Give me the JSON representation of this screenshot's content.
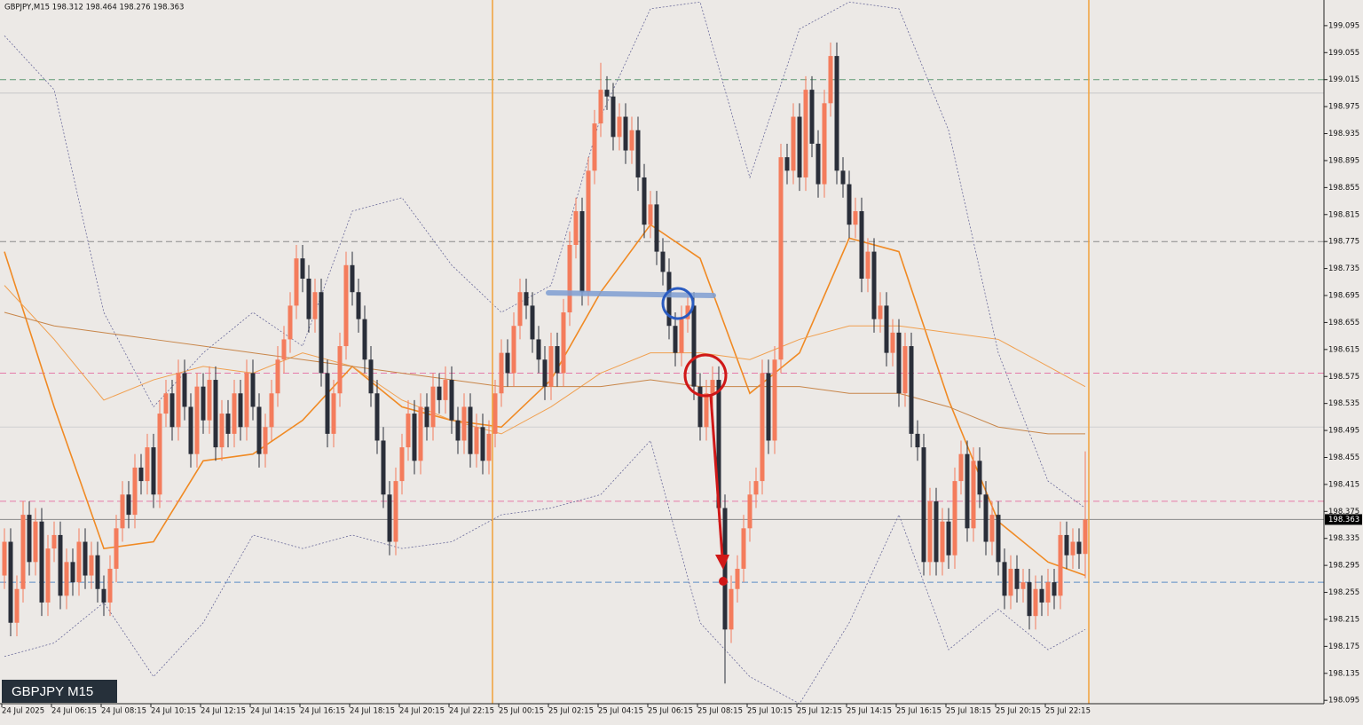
{
  "chart_data": {
    "type": "candlestick",
    "header": "GBPJPY,M15  198.312 198.464 198.276 198.363",
    "watermark": "GBPJPY M15",
    "up_color": "#f47c5c",
    "down_color": "#2a2e39",
    "ylim": [
      198.09,
      199.133
    ],
    "yticks": [
      199.095,
      199.055,
      199.015,
      198.975,
      198.935,
      198.895,
      198.855,
      198.815,
      198.775,
      198.735,
      198.695,
      198.655,
      198.615,
      198.575,
      198.535,
      198.495,
      198.455,
      198.415,
      198.375,
      198.335,
      198.295,
      198.255,
      198.215,
      198.175,
      198.135,
      198.095
    ],
    "categories": [
      "24 Jul 2025",
      null,
      null,
      null,
      null,
      null,
      null,
      null,
      "24 Jul 06:15",
      null,
      null,
      null,
      null,
      null,
      null,
      null,
      "24 Jul 08:15",
      null,
      null,
      null,
      null,
      null,
      null,
      null,
      "24 Jul 10:15",
      null,
      null,
      null,
      null,
      null,
      null,
      null,
      "24 Jul 12:15",
      null,
      null,
      null,
      null,
      null,
      null,
      null,
      "24 Jul 14:15",
      null,
      null,
      null,
      null,
      null,
      null,
      null,
      "24 Jul 16:15",
      null,
      null,
      null,
      null,
      null,
      null,
      null,
      "24 Jul 18:15",
      null,
      null,
      null,
      null,
      null,
      null,
      null,
      "24 Jul 20:15",
      null,
      null,
      null,
      null,
      null,
      null,
      null,
      "24 Jul 22:15",
      null,
      null,
      null,
      null,
      null,
      null,
      null,
      "25 Jul 00:15",
      null,
      null,
      null,
      null,
      null,
      null,
      null,
      "25 Jul 02:15",
      null,
      null,
      null,
      null,
      null,
      null,
      null,
      "25 Jul 04:15",
      null,
      null,
      null,
      null,
      null,
      null,
      null,
      "25 Jul 06:15",
      null,
      null,
      null,
      null,
      null,
      null,
      null,
      "25 Jul 08:15",
      null,
      null,
      null,
      null,
      null,
      null,
      null,
      "25 Jul 10:15",
      null,
      null,
      null,
      null,
      null,
      null,
      null,
      "25 Jul 12:15",
      null,
      null,
      null,
      null,
      null,
      null,
      null,
      "25 Jul 14:15",
      null,
      null,
      null,
      null,
      null,
      null,
      null,
      "25 Jul 16:15",
      null,
      null,
      null,
      null,
      null,
      null,
      null,
      "25 Jul 18:15",
      null,
      null,
      null,
      null,
      null,
      null,
      null,
      "25 Jul 20:15",
      null,
      null,
      null,
      null,
      null,
      null,
      null,
      "25 Jul 22:15",
      null,
      null,
      null,
      null,
      null,
      null
    ],
    "open": [
      198.28,
      198.33,
      198.21,
      198.26,
      198.37,
      198.3,
      198.36,
      198.24,
      198.32,
      198.34,
      198.25,
      198.3,
      198.27,
      198.33,
      198.28,
      198.31,
      198.26,
      198.24,
      198.29,
      198.35,
      198.4,
      198.37,
      198.44,
      198.42,
      198.47,
      198.4,
      198.52,
      198.55,
      198.5,
      198.58,
      198.53,
      198.46,
      198.56,
      198.51,
      198.57,
      198.47,
      198.52,
      198.49,
      198.55,
      198.5,
      198.58,
      198.53,
      198.46,
      198.5,
      198.55,
      198.6,
      198.63,
      198.68,
      198.75,
      198.72,
      198.66,
      198.7,
      198.58,
      198.49,
      198.55,
      198.62,
      198.74,
      198.7,
      198.66,
      198.6,
      198.55,
      198.48,
      198.4,
      198.33,
      198.42,
      198.47,
      198.52,
      198.45,
      198.53,
      198.5,
      198.56,
      198.54,
      198.57,
      198.51,
      198.48,
      198.53,
      198.46,
      198.5,
      198.45,
      198.49,
      198.55,
      198.61,
      198.58,
      198.65,
      198.7,
      198.68,
      198.63,
      198.6,
      198.56,
      198.62,
      198.58,
      198.67,
      198.77,
      198.82,
      198.7,
      198.88,
      198.95,
      199.0,
      198.99,
      198.93,
      198.96,
      198.91,
      198.94,
      198.87,
      198.8,
      198.83,
      198.76,
      198.73,
      198.65,
      198.61,
      198.66,
      198.68,
      198.56,
      198.5,
      198.55,
      198.57,
      198.38,
      198.2,
      198.26,
      198.29,
      198.35,
      198.4,
      198.42,
      198.58,
      198.48,
      198.6,
      198.9,
      198.88,
      198.96,
      198.87,
      199.0,
      198.92,
      198.86,
      198.98,
      199.05,
      198.88,
      198.86,
      198.8,
      198.82,
      198.72,
      198.76,
      198.66,
      198.68,
      198.61,
      198.64,
      198.55,
      198.62,
      198.49,
      198.47,
      198.3,
      198.39,
      198.3,
      198.36,
      198.31,
      198.42,
      198.46,
      198.35,
      198.45,
      198.4,
      198.33,
      198.37,
      198.3,
      198.25,
      198.29,
      198.26,
      198.27,
      198.22,
      198.26,
      198.24,
      198.27,
      198.25,
      198.34,
      198.31,
      198.33,
      198.312
    ],
    "high": [
      198.35,
      198.35,
      198.28,
      198.39,
      198.39,
      198.38,
      198.38,
      198.34,
      198.36,
      198.36,
      198.32,
      198.32,
      198.35,
      198.35,
      198.33,
      198.33,
      198.28,
      198.31,
      198.37,
      198.42,
      198.42,
      198.46,
      198.46,
      198.49,
      198.49,
      198.54,
      198.57,
      198.57,
      198.6,
      198.6,
      198.55,
      198.58,
      198.58,
      198.59,
      198.59,
      198.54,
      198.54,
      198.57,
      198.57,
      198.6,
      198.6,
      198.55,
      198.52,
      198.57,
      198.62,
      198.65,
      198.7,
      198.77,
      198.77,
      198.74,
      198.72,
      198.72,
      198.6,
      198.57,
      198.64,
      198.76,
      198.76,
      198.72,
      198.68,
      198.62,
      198.57,
      198.5,
      198.42,
      198.44,
      198.49,
      198.54,
      198.54,
      198.55,
      198.55,
      198.58,
      198.58,
      198.59,
      198.59,
      198.53,
      198.55,
      198.55,
      198.52,
      198.52,
      198.51,
      198.57,
      198.63,
      198.63,
      198.67,
      198.72,
      198.72,
      198.7,
      198.65,
      198.62,
      198.64,
      198.64,
      198.69,
      198.79,
      198.84,
      198.84,
      198.9,
      198.97,
      199.04,
      199.02,
      199.01,
      198.98,
      198.98,
      198.96,
      198.96,
      198.89,
      198.85,
      198.85,
      198.78,
      198.75,
      198.67,
      198.68,
      198.7,
      198.7,
      198.58,
      198.57,
      198.59,
      198.59,
      198.4,
      198.28,
      198.31,
      198.37,
      198.42,
      198.44,
      198.6,
      198.6,
      198.62,
      198.92,
      198.92,
      198.98,
      198.98,
      199.02,
      199.02,
      198.94,
      199.0,
      199.07,
      199.07,
      198.9,
      198.88,
      198.84,
      198.84,
      198.78,
      198.78,
      198.7,
      198.7,
      198.66,
      198.66,
      198.64,
      198.64,
      198.51,
      198.49,
      198.41,
      198.41,
      198.38,
      198.38,
      198.44,
      198.48,
      198.48,
      198.47,
      198.47,
      198.42,
      198.39,
      198.39,
      198.32,
      198.31,
      198.31,
      198.29,
      198.29,
      198.28,
      198.28,
      198.29,
      198.29,
      198.36,
      198.36,
      198.35,
      198.35,
      198.464
    ],
    "low": [
      198.26,
      198.19,
      198.19,
      198.24,
      198.28,
      198.28,
      198.22,
      198.22,
      198.3,
      198.23,
      198.23,
      198.25,
      198.25,
      198.26,
      198.26,
      198.24,
      198.22,
      198.22,
      198.27,
      198.33,
      198.35,
      198.35,
      198.4,
      198.4,
      198.38,
      198.38,
      198.5,
      198.48,
      198.48,
      198.51,
      198.44,
      198.44,
      198.49,
      198.49,
      198.45,
      198.45,
      198.47,
      198.47,
      198.48,
      198.48,
      198.51,
      198.44,
      198.44,
      198.48,
      198.53,
      198.58,
      198.61,
      198.66,
      198.7,
      198.64,
      198.64,
      198.56,
      198.47,
      198.47,
      198.53,
      198.6,
      198.68,
      198.64,
      198.58,
      198.53,
      198.46,
      198.38,
      198.31,
      198.31,
      198.4,
      198.45,
      198.43,
      198.43,
      198.48,
      198.48,
      198.52,
      198.52,
      198.49,
      198.46,
      198.46,
      198.44,
      198.44,
      198.43,
      198.43,
      198.47,
      198.53,
      198.56,
      198.56,
      198.63,
      198.66,
      198.61,
      198.58,
      198.54,
      198.54,
      198.56,
      198.56,
      198.65,
      198.75,
      198.68,
      198.68,
      198.86,
      198.93,
      198.97,
      198.91,
      198.91,
      198.89,
      198.89,
      198.85,
      198.78,
      198.78,
      198.74,
      198.71,
      198.63,
      198.59,
      198.59,
      198.64,
      198.54,
      198.48,
      198.48,
      198.53,
      198.36,
      198.12,
      198.18,
      198.24,
      198.27,
      198.33,
      198.38,
      198.4,
      198.46,
      198.46,
      198.58,
      198.86,
      198.86,
      198.85,
      198.85,
      198.9,
      198.84,
      198.84,
      198.96,
      198.86,
      198.84,
      198.78,
      198.78,
      198.7,
      198.7,
      198.64,
      198.64,
      198.59,
      198.59,
      198.53,
      198.53,
      198.47,
      198.45,
      198.28,
      198.28,
      198.28,
      198.28,
      198.29,
      198.29,
      198.4,
      198.33,
      198.33,
      198.38,
      198.31,
      198.31,
      198.28,
      198.23,
      198.23,
      198.24,
      198.24,
      198.2,
      198.2,
      198.22,
      198.22,
      198.23,
      198.23,
      198.29,
      198.29,
      198.29,
      198.276
    ],
    "close": [
      198.33,
      198.21,
      198.26,
      198.37,
      198.3,
      198.36,
      198.24,
      198.32,
      198.34,
      198.25,
      198.3,
      198.27,
      198.33,
      198.28,
      198.31,
      198.26,
      198.24,
      198.29,
      198.35,
      198.4,
      198.37,
      198.44,
      198.42,
      198.47,
      198.4,
      198.52,
      198.55,
      198.5,
      198.58,
      198.53,
      198.46,
      198.56,
      198.51,
      198.57,
      198.47,
      198.52,
      198.49,
      198.55,
      198.5,
      198.58,
      198.53,
      198.46,
      198.5,
      198.55,
      198.6,
      198.63,
      198.68,
      198.75,
      198.72,
      198.66,
      198.7,
      198.58,
      198.49,
      198.55,
      198.62,
      198.74,
      198.7,
      198.66,
      198.6,
      198.55,
      198.48,
      198.4,
      198.33,
      198.42,
      198.47,
      198.52,
      198.45,
      198.53,
      198.5,
      198.56,
      198.54,
      198.57,
      198.51,
      198.48,
      198.53,
      198.46,
      198.5,
      198.45,
      198.49,
      198.55,
      198.61,
      198.58,
      198.65,
      198.7,
      198.68,
      198.63,
      198.6,
      198.56,
      198.62,
      198.58,
      198.67,
      198.77,
      198.82,
      198.7,
      198.88,
      198.95,
      199.0,
      198.99,
      198.93,
      198.96,
      198.91,
      198.94,
      198.87,
      198.8,
      198.83,
      198.76,
      198.73,
      198.65,
      198.61,
      198.66,
      198.68,
      198.56,
      198.5,
      198.55,
      198.57,
      198.38,
      198.2,
      198.26,
      198.29,
      198.35,
      198.4,
      198.42,
      198.58,
      198.48,
      198.6,
      198.9,
      198.88,
      198.96,
      198.87,
      199.0,
      198.92,
      198.86,
      198.98,
      199.05,
      198.88,
      198.86,
      198.8,
      198.82,
      198.72,
      198.76,
      198.66,
      198.68,
      198.61,
      198.64,
      198.55,
      198.62,
      198.49,
      198.47,
      198.3,
      198.39,
      198.3,
      198.36,
      198.31,
      198.42,
      198.46,
      198.35,
      198.45,
      198.4,
      198.33,
      198.37,
      198.3,
      198.25,
      198.29,
      198.26,
      198.27,
      198.22,
      198.26,
      198.24,
      198.27,
      198.25,
      198.34,
      198.31,
      198.33,
      198.312,
      198.363
    ],
    "hlines": [
      {
        "value": 199.015,
        "color": "#5f9a74",
        "dashed": true
      },
      {
        "value": 198.995,
        "color": "#c8c8c8",
        "dashed": false
      },
      {
        "value": 198.775,
        "color": "#8a8a8a",
        "dashed": true
      },
      {
        "value": 198.58,
        "color": "#e57aa8",
        "dashed": true
      },
      {
        "value": 198.5,
        "color": "#d0d0d0",
        "dashed": false
      },
      {
        "value": 198.39,
        "color": "#e57aa8",
        "dashed": true
      },
      {
        "value": 198.363,
        "color": "#8a8a8a",
        "dashed": false
      },
      {
        "value": 198.27,
        "color": "#5b8fc7",
        "dashed": true
      }
    ],
    "indicator_x": [
      0,
      8,
      16,
      24,
      32,
      40,
      48,
      56,
      64,
      72,
      80,
      88,
      96,
      104,
      112,
      120,
      128,
      136,
      144,
      152,
      160,
      168,
      174
    ],
    "indicators": [
      {
        "color": "#f08a24",
        "width": 1.6,
        "dotted": false,
        "values": [
          198.76,
          198.53,
          198.32,
          198.33,
          198.45,
          198.46,
          198.51,
          198.59,
          198.53,
          198.51,
          198.5,
          198.57,
          198.7,
          198.8,
          198.75,
          198.55,
          198.61,
          198.78,
          198.76,
          198.54,
          198.36,
          198.3,
          198.28
        ]
      },
      {
        "color": "#f0a050",
        "width": 1,
        "dotted": false,
        "values": [
          198.71,
          198.63,
          198.54,
          198.57,
          198.59,
          198.58,
          198.61,
          198.59,
          198.54,
          198.51,
          198.49,
          198.53,
          198.58,
          198.61,
          198.61,
          198.6,
          198.63,
          198.65,
          198.65,
          198.64,
          198.63,
          198.59,
          198.56
        ]
      },
      {
        "color": "#c8864a",
        "width": 1,
        "dotted": false,
        "values": [
          198.67,
          198.65,
          198.64,
          198.63,
          198.62,
          198.61,
          198.6,
          198.59,
          198.58,
          198.57,
          198.56,
          198.56,
          198.56,
          198.57,
          198.56,
          198.56,
          198.56,
          198.55,
          198.55,
          198.53,
          198.5,
          198.49,
          198.49
        ]
      },
      {
        "color": "#6a6a9a",
        "width": 0.8,
        "dotted": true,
        "values": [
          199.08,
          199.0,
          198.67,
          198.53,
          198.61,
          198.67,
          198.62,
          198.82,
          198.84,
          198.74,
          198.67,
          198.71,
          198.96,
          199.12,
          199.13,
          198.87,
          199.09,
          199.13,
          199.12,
          198.94,
          198.61,
          198.42,
          198.38
        ]
      },
      {
        "color": "#6a6a9a",
        "width": 0.8,
        "dotted": true,
        "values": [
          198.16,
          198.18,
          198.24,
          198.13,
          198.21,
          198.34,
          198.32,
          198.34,
          198.32,
          198.33,
          198.37,
          198.38,
          198.4,
          198.48,
          198.21,
          198.13,
          198.09,
          198.21,
          198.37,
          198.17,
          198.23,
          198.17,
          198.2
        ]
      }
    ]
  }
}
